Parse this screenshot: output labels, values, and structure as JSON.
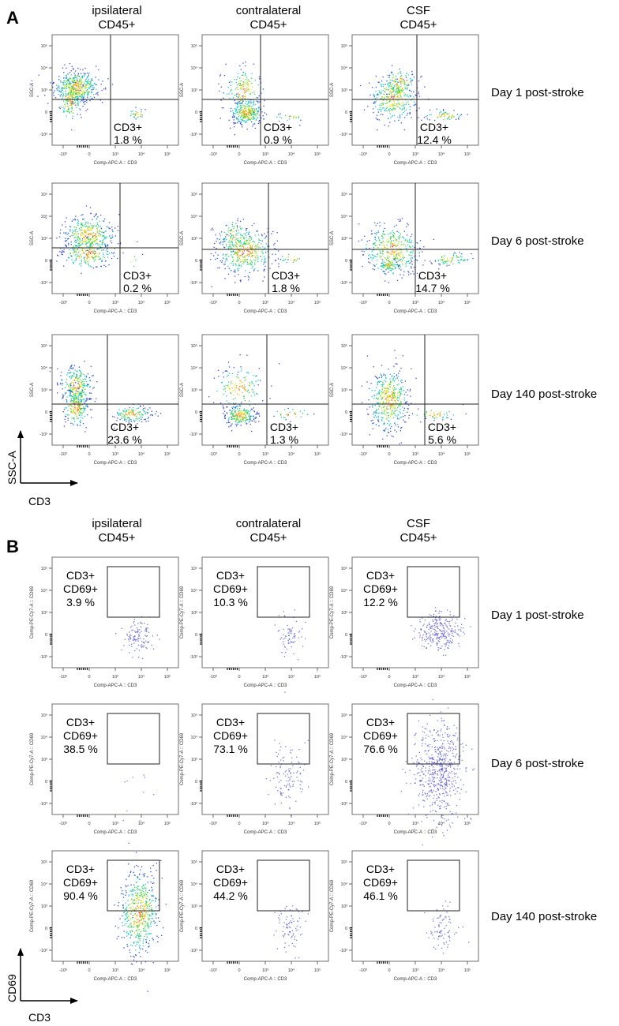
{
  "figure": {
    "panelA": {
      "letter": "A",
      "columns": [
        {
          "line1": "ipsilateral",
          "line2": "CD45+"
        },
        {
          "line1": "contralateral",
          "line2": "CD45+"
        },
        {
          "line1": "CSF",
          "line2": "CD45+"
        }
      ],
      "rows": [
        "Day 1 post-stroke",
        "Day 6 post-stroke",
        "Day 140 post-stroke"
      ],
      "y_axis_label": "SSC-A",
      "x_axis_label": "Comp-APC-A :: CD3",
      "gate_label": "CD3+",
      "axis_arrow_y": "SSC-A",
      "axis_arrow_x": "CD3"
    },
    "panelB": {
      "letter": "B",
      "columns": [
        {
          "line1": "ipsilateral",
          "line2": "CD45+"
        },
        {
          "line1": "contralateral",
          "line2": "CD45+"
        },
        {
          "line1": "CSF",
          "line2": "CD45+"
        }
      ],
      "rows": [
        "Day 1 post-stroke",
        "Day 6 post-stroke",
        "Day 140 post-stroke"
      ],
      "y_axis_label": "Comp-PE-Cy7-A :: CD69",
      "x_axis_label": "Comp-APC-A :: CD3",
      "gate_label_line1": "CD3+",
      "gate_label_line2": "CD69+",
      "axis_arrow_y": "CD69",
      "axis_arrow_x": "CD3"
    },
    "tick_labels": {
      "x": [
        "-10³",
        "0",
        "10³",
        "10⁴",
        "10⁵"
      ],
      "y": [
        "-10³",
        "0",
        "10³",
        "10⁴",
        "10⁵"
      ]
    }
  },
  "chart_data": [
    {
      "type": "scatter",
      "title": "A: CD45+ cells, SSC-A vs CD3 (percent CD3+)",
      "xlabel": "Comp-APC-A :: CD3",
      "ylabel": "SSC-A",
      "scale": "biexponential",
      "row_labels": [
        "Day 1 post-stroke",
        "Day 6 post-stroke",
        "Day 140 post-stroke"
      ],
      "column_labels": [
        "ipsilateral",
        "contralateral",
        "CSF"
      ],
      "gate": "CD3+",
      "values_percent": [
        [
          1.8,
          0.9,
          12.4
        ],
        [
          0.2,
          1.8,
          14.7
        ],
        [
          23.6,
          1.3,
          5.6
        ]
      ]
    },
    {
      "type": "scatter",
      "title": "B: CD3+ cells, CD69 vs CD3 (percent CD3+CD69+)",
      "xlabel": "Comp-APC-A :: CD3",
      "ylabel": "Comp-PE-Cy7-A :: CD69",
      "scale": "biexponential",
      "row_labels": [
        "Day 1 post-stroke",
        "Day 6 post-stroke",
        "Day 140 post-stroke"
      ],
      "column_labels": [
        "ipsilateral",
        "contralateral",
        "CSF"
      ],
      "gate": "CD3+CD69+",
      "values_percent": [
        [
          3.9,
          10.3,
          12.2
        ],
        [
          38.5,
          73.1,
          76.6
        ],
        [
          90.4,
          44.2,
          46.1
        ]
      ]
    }
  ]
}
